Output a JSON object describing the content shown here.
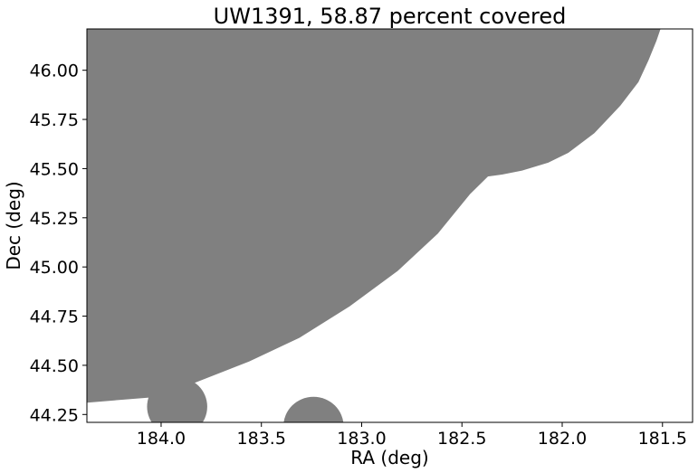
{
  "chart_data": {
    "type": "area",
    "title": "UW1391, 58.87 percent covered",
    "xlabel": "RA (deg)",
    "ylabel": "Dec (deg)",
    "xlim": [
      184.37,
      181.35
    ],
    "ylim": [
      44.21,
      46.21
    ],
    "x_inverted": true,
    "xticks": [
      184.0,
      183.5,
      183.0,
      182.5,
      182.0,
      181.5
    ],
    "xtick_labels": [
      "184.0",
      "183.5",
      "183.0",
      "182.5",
      "182.0",
      "181.5"
    ],
    "yticks": [
      44.25,
      44.5,
      44.75,
      45.0,
      45.25,
      45.5,
      45.75,
      46.0
    ],
    "ytick_labels": [
      "44.25",
      "44.50",
      "44.75",
      "45.00",
      "45.25",
      "45.50",
      "45.75",
      "46.00"
    ],
    "grid": false,
    "fill_color": "#808080",
    "regions": [
      {
        "shape": "polygon",
        "points": [
          [
            184.37,
            44.31
          ],
          [
            184.01,
            44.34
          ],
          [
            183.56,
            44.52
          ],
          [
            183.31,
            44.64
          ],
          [
            183.06,
            44.8
          ],
          [
            182.82,
            44.98
          ],
          [
            182.62,
            45.17
          ],
          [
            182.46,
            45.37
          ],
          [
            182.37,
            45.46
          ],
          [
            182.3,
            45.47
          ],
          [
            182.2,
            45.49
          ],
          [
            182.07,
            45.53
          ],
          [
            181.97,
            45.58
          ],
          [
            181.84,
            45.68
          ],
          [
            181.71,
            45.82
          ],
          [
            181.62,
            45.94
          ],
          [
            181.57,
            46.05
          ],
          [
            181.53,
            46.15
          ],
          [
            181.51,
            46.21
          ],
          [
            184.37,
            46.21
          ]
        ]
      },
      {
        "shape": "circle",
        "center": [
          183.92,
          44.29
        ],
        "radius": 0.15
      },
      {
        "shape": "circle",
        "center": [
          183.24,
          44.19
        ],
        "radius": 0.15
      }
    ]
  }
}
